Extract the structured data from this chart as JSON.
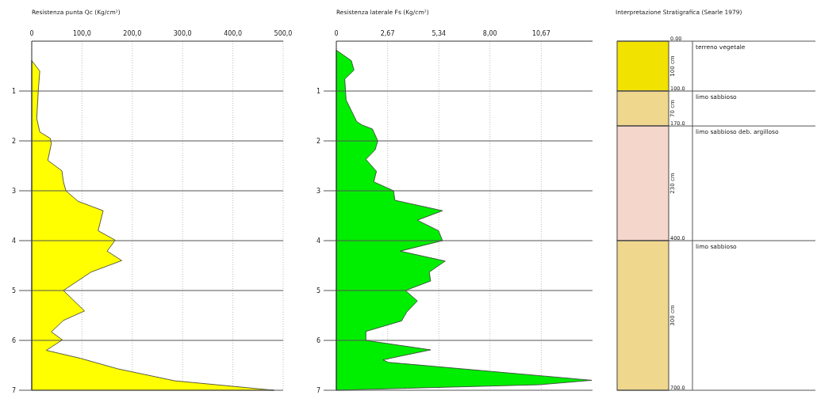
{
  "chart_data": [
    {
      "type": "area",
      "title": "Resistenza punta Qc (Kg/cm²)",
      "orientation": "horizontal",
      "xlim": [
        0,
        500
      ],
      "xticks": [
        {
          "value": 0,
          "label": "0"
        },
        {
          "value": 100,
          "label": "100,0"
        },
        {
          "value": 200,
          "label": "200,0"
        },
        {
          "value": 300,
          "label": "300,0"
        },
        {
          "value": 400,
          "label": "400,0"
        },
        {
          "value": 500,
          "label": "500,0"
        }
      ],
      "ylim": [
        7,
        0
      ],
      "yticks": [
        1,
        2,
        3,
        4,
        5,
        6,
        7
      ],
      "grid": true,
      "series": [
        {
          "color": "#ffff00",
          "x": [
            0.39,
            0.6,
            1.0,
            1.55,
            1.82,
            1.95,
            2.05,
            2.39,
            2.6,
            2.82,
            3.0,
            3.21,
            3.4,
            3.8,
            3.99,
            4.21,
            4.4,
            4.63,
            5.0,
            5.41,
            5.6,
            5.83,
            5.99,
            6.2,
            6.36,
            6.57,
            6.81,
            7.0
          ],
          "values": [
            0,
            16,
            13,
            10,
            16,
            37,
            39,
            32,
            60,
            63,
            68,
            92,
            142,
            132,
            166,
            150,
            179,
            118,
            63,
            105,
            63,
            39,
            61,
            29,
            97,
            171,
            284,
            482
          ]
        }
      ]
    },
    {
      "type": "area",
      "title": "Resistenza laterale Fs (Kg/cm²)",
      "orientation": "horizontal",
      "xlim": [
        0,
        13.34
      ],
      "xticks": [
        {
          "value": 0,
          "label": "0"
        },
        {
          "value": 2.67,
          "label": "2,67"
        },
        {
          "value": 5.34,
          "label": "5,34"
        },
        {
          "value": 8.0,
          "label": "8,00"
        },
        {
          "value": 10.67,
          "label": "10,67"
        }
      ],
      "ylim": [
        7,
        0
      ],
      "yticks": [
        1,
        2,
        3,
        4,
        5,
        6,
        7
      ],
      "grid": true,
      "series": [
        {
          "color": "#00ee00",
          "x": [
            0.18,
            0.39,
            0.58,
            0.76,
            1.18,
            1.61,
            1.68,
            1.76,
            2.0,
            2.18,
            2.37,
            2.61,
            2.82,
            3.0,
            3.19,
            3.4,
            3.59,
            3.8,
            4.0,
            4.21,
            4.41,
            4.63,
            4.81,
            5.0,
            5.21,
            5.43,
            5.61,
            5.82,
            6.0,
            6.19,
            6.39,
            6.44,
            6.8,
            6.89,
            6.96,
            7.0
          ],
          "values": [
            0,
            0.78,
            0.92,
            0.44,
            0.51,
            1.06,
            1.33,
            1.88,
            2.16,
            2.02,
            1.54,
            2.09,
            1.95,
            2.98,
            3.05,
            5.53,
            4.22,
            5.32,
            5.53,
            3.33,
            5.67,
            4.84,
            4.91,
            3.6,
            4.22,
            3.67,
            3.4,
            1.54,
            1.54,
            4.91,
            2.43,
            2.71,
            13.3,
            10.55,
            3.7,
            0
          ]
        }
      ]
    },
    {
      "type": "bar",
      "title": "Interpretazione Stratigrafica (Searle 1979)",
      "stacked": true,
      "categories": [
        null
      ],
      "ylim": [
        700,
        0
      ],
      "yticks": [
        {
          "value": 0,
          "label": "0.00"
        },
        {
          "value": 100,
          "label": "100.0"
        },
        {
          "value": 170,
          "label": "170.0"
        },
        {
          "value": 400,
          "label": "400.0"
        },
        {
          "value": 700,
          "label": "700.0"
        }
      ],
      "tick_labels": "y",
      "grid": "y",
      "series": [
        {
          "name": "terreno vegetale",
          "color": "#f2e200",
          "values": [
            100
          ],
          "value_labels": [
            "100 cm"
          ]
        },
        {
          "name": "limo sabbioso",
          "color": "#efd78e",
          "values": [
            70
          ],
          "value_labels": [
            "70 cm"
          ]
        },
        {
          "name": "limo sabbioso deb. argilloso",
          "color": "#f5d6cb",
          "values": [
            230
          ],
          "value_labels": [
            "230 cm"
          ]
        },
        {
          "name": "limo sabbioso",
          "color": "#efd78e",
          "values": [
            300
          ],
          "value_labels": [
            "300 cm"
          ]
        }
      ]
    }
  ]
}
